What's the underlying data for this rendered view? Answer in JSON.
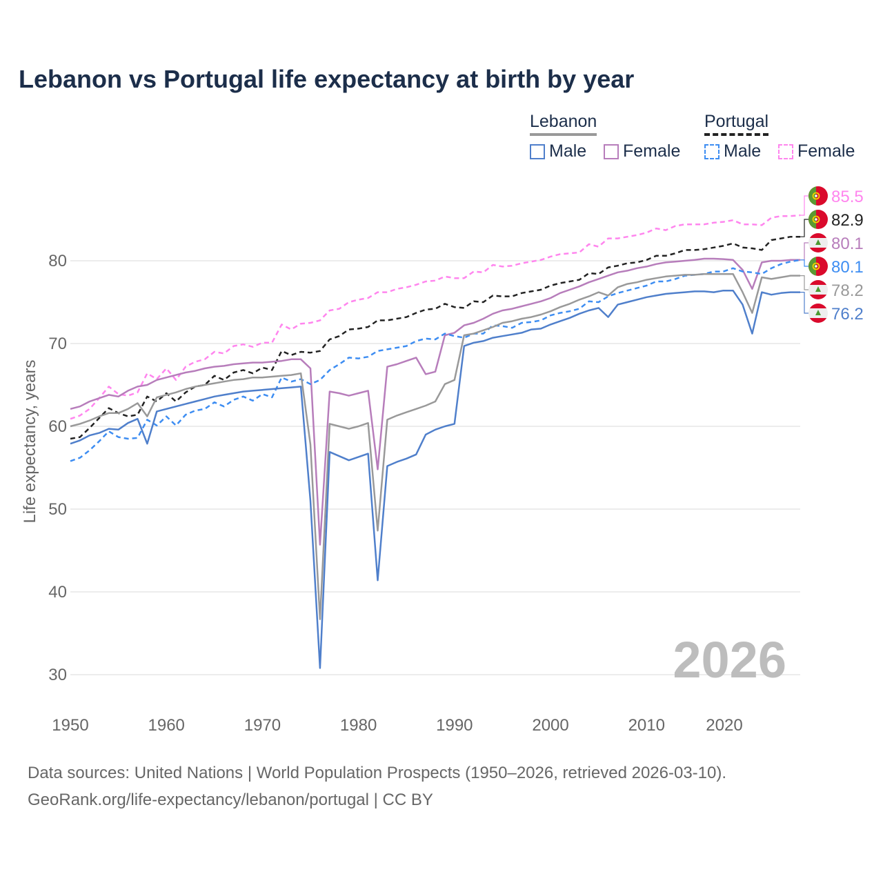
{
  "title": "Lebanon vs Portugal life expectancy at birth by year",
  "legend": {
    "groups": [
      {
        "name": "Lebanon",
        "color": "#999999",
        "dashed": false,
        "items": [
          {
            "label": "Male",
            "color": "#4f7fcb"
          },
          {
            "label": "Female",
            "color": "#b77dbb"
          }
        ]
      },
      {
        "name": "Portugal",
        "color": "#222222",
        "dashed": true,
        "items": [
          {
            "label": "Male",
            "color": "#3d8df2"
          },
          {
            "label": "Female",
            "color": "#ff85ee"
          }
        ]
      }
    ]
  },
  "year_watermark": "2026",
  "footer": {
    "line1": "Data sources: United Nations | World Population Prospects (1950–2026, retrieved 2026-03-10).",
    "line2": "GeoRank.org/life-expectancy/lebanon/portugal | CC BY"
  },
  "chart_data": {
    "type": "line",
    "title": "Lebanon vs Portugal life expectancy at birth by year",
    "xlabel": "",
    "ylabel": "Life expectancy, years",
    "xlim": [
      1950,
      2026
    ],
    "ylim": [
      25,
      88
    ],
    "xticks": [
      1950,
      1960,
      1970,
      1980,
      1990,
      2000,
      2010,
      2020
    ],
    "yticks": [
      30,
      40,
      50,
      60,
      70,
      80
    ],
    "grid": true,
    "legend_position": "top-right",
    "x_start": 1950,
    "series": [
      {
        "name": "Portugal Female",
        "country": "Portugal",
        "flag": "portugal-flag",
        "color": "#ff85ee",
        "dashed": true,
        "end_label": "85.5",
        "values": [
          60.9,
          61.3,
          62.1,
          63.4,
          64.8,
          63.9,
          63.7,
          64.1,
          66.4,
          65.7,
          67.0,
          65.6,
          67.2,
          67.8,
          68.1,
          69.0,
          68.8,
          69.7,
          69.9,
          69.6,
          70.1,
          70.1,
          72.3,
          71.7,
          72.4,
          72.5,
          72.8,
          74.0,
          74.2,
          75.0,
          75.3,
          75.5,
          76.2,
          76.2,
          76.6,
          76.8,
          77.1,
          77.5,
          77.6,
          78.1,
          77.9,
          77.9,
          78.7,
          78.6,
          79.5,
          79.3,
          79.4,
          79.7,
          79.9,
          80.1,
          80.5,
          80.8,
          80.9,
          81.0,
          82.0,
          81.7,
          82.7,
          82.7,
          82.9,
          83.1,
          83.4,
          83.9,
          83.7,
          84.2,
          84.4,
          84.4,
          84.4,
          84.6,
          84.7,
          84.9,
          84.4,
          84.4,
          84.3,
          85.2,
          85.4,
          85.4,
          85.5
        ]
      },
      {
        "name": "Portugal",
        "country": "Portugal",
        "flag": "portugal-flag",
        "color": "#222222",
        "dashed": true,
        "end_label": "82.9",
        "values": [
          58.5,
          58.7,
          59.8,
          61.0,
          62.2,
          61.6,
          61.2,
          61.4,
          63.6,
          63.0,
          64.0,
          63.0,
          64.1,
          64.8,
          65.0,
          66.1,
          65.6,
          66.5,
          66.8,
          66.4,
          67.1,
          66.8,
          69.1,
          68.6,
          69.0,
          68.9,
          69.1,
          70.5,
          70.9,
          71.7,
          71.8,
          72.0,
          72.8,
          72.8,
          73.0,
          73.2,
          73.7,
          74.1,
          74.2,
          74.8,
          74.4,
          74.3,
          75.1,
          75.0,
          75.8,
          75.7,
          75.7,
          76.1,
          76.3,
          76.5,
          77.0,
          77.3,
          77.5,
          77.7,
          78.5,
          78.4,
          79.2,
          79.4,
          79.7,
          79.8,
          80.1,
          80.6,
          80.6,
          80.9,
          81.3,
          81.3,
          81.4,
          81.6,
          81.8,
          82.1,
          81.6,
          81.5,
          81.3,
          82.5,
          82.7,
          82.9,
          82.9
        ]
      },
      {
        "name": "Lebanon Female",
        "country": "Lebanon",
        "flag": "lebanon-flag",
        "color": "#b77dbb",
        "dashed": false,
        "end_label": "80.1",
        "values": [
          62.1,
          62.4,
          63.0,
          63.4,
          63.8,
          63.6,
          64.3,
          64.8,
          65.0,
          65.6,
          65.9,
          66.2,
          66.5,
          66.7,
          67.0,
          67.2,
          67.3,
          67.5,
          67.6,
          67.7,
          67.7,
          67.8,
          67.9,
          68.1,
          68.1,
          67.0,
          45.7,
          64.2,
          64.0,
          63.7,
          64.0,
          64.3,
          54.8,
          67.2,
          67.5,
          67.9,
          68.3,
          66.3,
          66.6,
          71.0,
          71.3,
          72.2,
          72.5,
          73.0,
          73.6,
          74.0,
          74.2,
          74.5,
          74.8,
          75.1,
          75.5,
          76.1,
          76.5,
          76.9,
          77.4,
          77.8,
          78.2,
          78.6,
          78.8,
          79.1,
          79.3,
          79.6,
          79.8,
          79.9,
          80.0,
          80.1,
          80.25,
          80.25,
          80.2,
          80.1,
          78.9,
          76.6,
          79.8,
          80.0,
          80.0,
          80.1,
          80.1
        ]
      },
      {
        "name": "Portugal Male",
        "country": "Portugal",
        "flag": "portugal-flag",
        "color": "#3d8df2",
        "dashed": true,
        "end_label": "80.1",
        "values": [
          55.8,
          56.2,
          57.1,
          58.2,
          59.4,
          58.7,
          58.5,
          58.6,
          60.8,
          60.1,
          61.2,
          60.1,
          61.4,
          61.9,
          62.1,
          62.9,
          62.4,
          63.2,
          63.6,
          63.1,
          63.9,
          63.5,
          65.9,
          65.4,
          65.7,
          65.1,
          65.6,
          66.8,
          67.5,
          68.3,
          68.2,
          68.4,
          69.1,
          69.3,
          69.5,
          69.7,
          70.3,
          70.6,
          70.5,
          71.2,
          70.9,
          70.7,
          71.2,
          71.2,
          72.2,
          72.1,
          71.9,
          72.5,
          72.6,
          72.8,
          73.4,
          73.7,
          73.9,
          74.2,
          75.1,
          75.0,
          75.7,
          76.1,
          76.4,
          76.7,
          77.0,
          77.5,
          77.5,
          77.8,
          78.2,
          78.3,
          78.4,
          78.7,
          78.7,
          79.1,
          78.7,
          78.6,
          78.4,
          79.1,
          79.6,
          79.9,
          80.1
        ]
      },
      {
        "name": "Lebanon",
        "country": "Lebanon",
        "flag": "lebanon-flag",
        "color": "#999999",
        "dashed": false,
        "end_label": "78.2",
        "values": [
          60.0,
          60.3,
          60.7,
          61.2,
          61.6,
          61.6,
          62.1,
          62.8,
          61.2,
          63.5,
          63.8,
          64.1,
          64.5,
          64.8,
          65.0,
          65.2,
          65.4,
          65.6,
          65.7,
          65.9,
          65.9,
          66.0,
          66.1,
          66.2,
          66.4,
          57.8,
          36.7,
          60.3,
          60.0,
          59.7,
          60.0,
          60.4,
          47.4,
          60.8,
          61.3,
          61.7,
          62.1,
          62.5,
          63.0,
          65.1,
          65.6,
          71.0,
          71.2,
          71.6,
          72.0,
          72.5,
          72.7,
          73.0,
          73.2,
          73.5,
          73.9,
          74.4,
          74.8,
          75.3,
          75.7,
          76.2,
          75.8,
          76.8,
          77.2,
          77.4,
          77.7,
          77.9,
          78.1,
          78.2,
          78.3,
          78.3,
          78.4,
          78.4,
          78.4,
          78.4,
          76.2,
          73.7,
          78.0,
          77.8,
          78.0,
          78.2,
          78.2
        ]
      },
      {
        "name": "Lebanon Male",
        "country": "Lebanon",
        "flag": "lebanon-flag",
        "color": "#4f7fcb",
        "dashed": false,
        "end_label": "76.2",
        "values": [
          57.9,
          58.3,
          58.9,
          59.2,
          59.7,
          59.6,
          60.4,
          60.9,
          57.9,
          61.8,
          62.1,
          62.4,
          62.7,
          63.0,
          63.3,
          63.6,
          63.8,
          64.0,
          64.2,
          64.3,
          64.4,
          64.5,
          64.6,
          64.7,
          64.8,
          51.0,
          30.8,
          56.9,
          56.4,
          55.9,
          56.3,
          56.7,
          41.4,
          55.2,
          55.7,
          56.1,
          56.6,
          59.0,
          59.6,
          60.0,
          60.3,
          69.7,
          70.1,
          70.3,
          70.7,
          70.9,
          71.1,
          71.3,
          71.7,
          71.8,
          72.3,
          72.7,
          73.1,
          73.6,
          74.0,
          74.3,
          73.2,
          74.7,
          75.0,
          75.3,
          75.6,
          75.8,
          76.0,
          76.1,
          76.2,
          76.3,
          76.3,
          76.2,
          76.4,
          76.4,
          74.7,
          71.2,
          76.2,
          75.9,
          76.1,
          76.2,
          76.2
        ]
      }
    ]
  }
}
